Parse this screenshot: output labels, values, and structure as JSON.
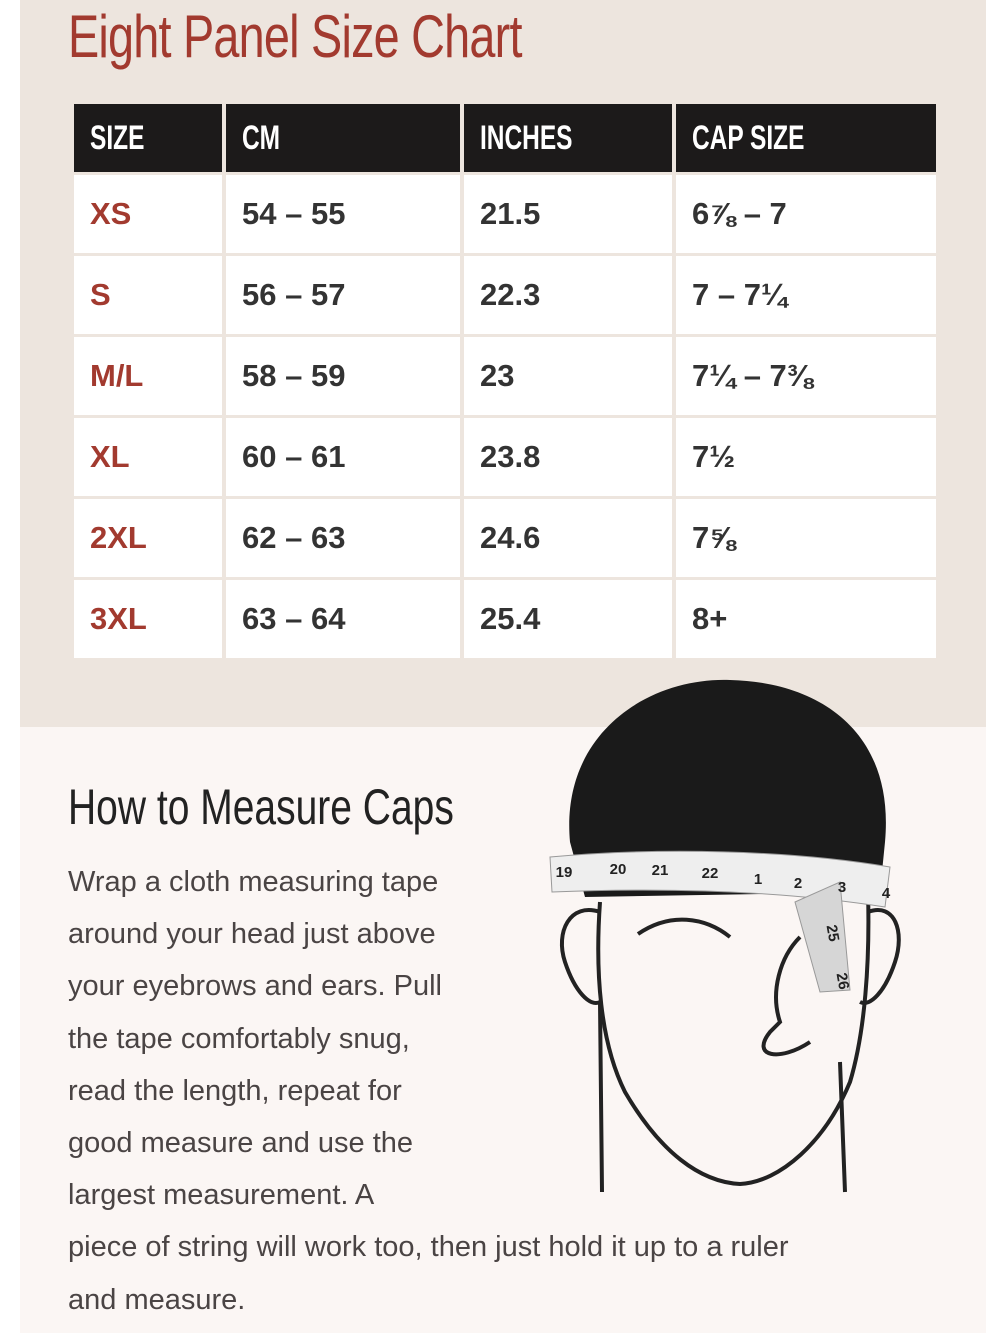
{
  "header": {
    "title": "Eight Panel Size Chart"
  },
  "table": {
    "columns": [
      "SIZE",
      "CM",
      "INCHES",
      "CAP SIZE"
    ],
    "rows": [
      [
        "XS",
        "54 – 55",
        "21.5",
        "6⅞ – 7"
      ],
      [
        "S",
        "56 – 57",
        "22.3",
        "7 – 7¼"
      ],
      [
        "M/L",
        "58 – 59",
        "23",
        "7¼ – 7⅜"
      ],
      [
        "XL",
        "60 – 61",
        "23.8",
        "7½"
      ],
      [
        "2XL",
        "62 – 63",
        "24.6",
        "7⅝"
      ],
      [
        "3XL",
        "63 – 64",
        "25.4",
        "8+"
      ]
    ]
  },
  "section": {
    "heading": "How to Measure Caps",
    "lines": [
      "Wrap a cloth measuring tape",
      "around your head just above",
      "your eyebrows and ears. Pull",
      "the tape comfortably snug,",
      "read the length, repeat for",
      "good measure and use the",
      "largest measurement. A",
      "piece of string will work too, then just hold it up to a ruler",
      "and measure."
    ]
  },
  "illustration": {
    "tape_labels": [
      "19",
      "20",
      "21",
      "22",
      "1",
      "2",
      "3",
      "4",
      "25",
      "26"
    ]
  }
}
